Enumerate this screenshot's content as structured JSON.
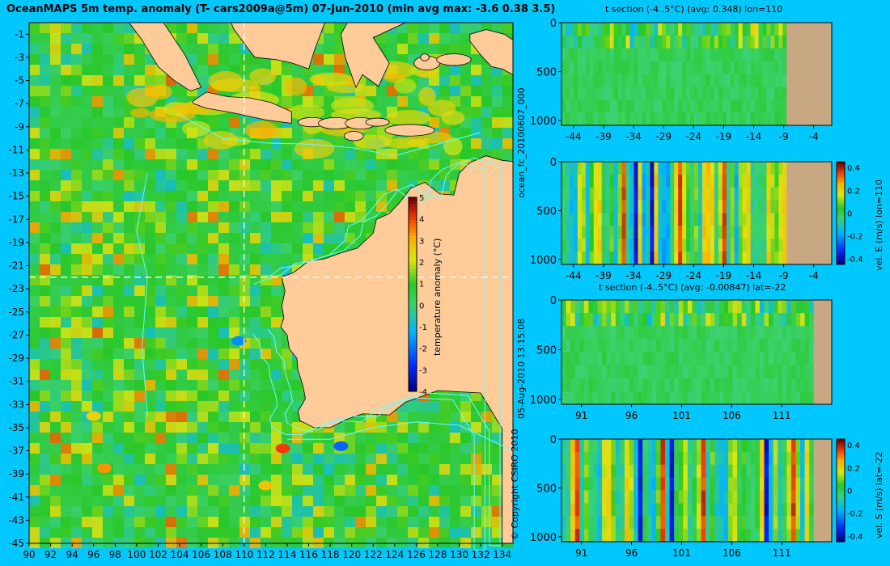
{
  "title": "OceanMAPS 5m temp. anomaly (T- cars2009a@5m) 07-Jun-2010 (min avg max: -3.6 0.38 3.5)",
  "colors": {
    "background": "#00c8ff",
    "land": "#ffcc99",
    "section_land": "#c8a882",
    "ocean_base": "#2ec030",
    "contour": "#66ffff",
    "transect": "#ffffff"
  },
  "side_labels": {
    "run_id": "ocean_fc_20100607_000",
    "timestamp": "05-Aug-2010 13:15:08",
    "copyright": "© Copyright CSIRO 2010"
  },
  "chart_data": [
    {
      "type": "heatmap",
      "name_on_chart": "",
      "xlabel": "",
      "ylabel": "",
      "x_ticks": [
        "90",
        "92",
        "94",
        "96",
        "98",
        "100",
        "102",
        "104",
        "106",
        "108",
        "110",
        "112",
        "114",
        "116",
        "118",
        "120",
        "122",
        "124",
        "126",
        "128",
        "130",
        "132",
        "134"
      ],
      "y_ticks": [
        "-1",
        "-3",
        "-5",
        "-7",
        "-9",
        "-11",
        "-13",
        "-15",
        "-17",
        "-19",
        "-21",
        "-23",
        "-25",
        "-27",
        "-29",
        "-31",
        "-33",
        "-35",
        "-37",
        "-39",
        "-41",
        "-43",
        "-45"
      ],
      "xlim": [
        90,
        135
      ],
      "ylim": [
        -45,
        0
      ],
      "transect_lon": 110,
      "transect_lat": -22,
      "colorbar": {
        "label": "temperature anomaly (°C)",
        "ticks": [
          "5",
          "4",
          "3",
          "2",
          "1",
          "0",
          "-1",
          "-2",
          "-3",
          "-4"
        ],
        "range": [
          -4,
          5
        ]
      },
      "summary": {
        "min": -3.6,
        "avg": 0.38,
        "max": 3.5
      }
    },
    {
      "type": "heatmap",
      "title": "t section (-4..5°C) (avg: 0.348) lon=110",
      "x_ticks": [
        "-44",
        "-39",
        "-34",
        "-29",
        "-24",
        "-19",
        "-14",
        "-9",
        "-4"
      ],
      "y_ticks": [
        "0",
        "500",
        "1000"
      ],
      "xlim": [
        -46,
        -1
      ],
      "ylim": [
        1050,
        0
      ],
      "land_from_x": -8.5
    },
    {
      "type": "heatmap",
      "title": "",
      "x_ticks": [
        "-44",
        "-39",
        "-34",
        "-29",
        "-24",
        "-19",
        "-14",
        "-9",
        "-4"
      ],
      "y_ticks": [
        "0",
        "500",
        "1000"
      ],
      "xlim": [
        -46,
        -1
      ],
      "ylim": [
        1050,
        0
      ],
      "land_from_x": -8.5,
      "colorbar": {
        "label": "vel. E (m/s) lon=110",
        "ticks": [
          "0.4",
          "0.2",
          "0",
          "-0.2",
          "-0.4"
        ],
        "range": [
          -0.45,
          0.45
        ]
      }
    },
    {
      "type": "heatmap",
      "title": "t section (-4..5°C) (avg: -0.00847) lat=-22",
      "x_ticks": [
        "91",
        "96",
        "101",
        "106",
        "111"
      ],
      "y_ticks": [
        "0",
        "500",
        "1000"
      ],
      "xlim": [
        89,
        116
      ],
      "ylim": [
        1050,
        0
      ],
      "land_from_x": 114.2
    },
    {
      "type": "heatmap",
      "title": "",
      "x_ticks": [
        "91",
        "96",
        "101",
        "106",
        "111"
      ],
      "y_ticks": [
        "0",
        "500",
        "1000"
      ],
      "xlim": [
        89,
        116
      ],
      "ylim": [
        1050,
        0
      ],
      "land_from_x": 114.2,
      "colorbar": {
        "label": "vel. S (m/s) lat=-22",
        "ticks": [
          "0.4",
          "0.2",
          "0",
          "-0.2",
          "-0.4"
        ],
        "range": [
          -0.45,
          0.45
        ]
      }
    }
  ]
}
